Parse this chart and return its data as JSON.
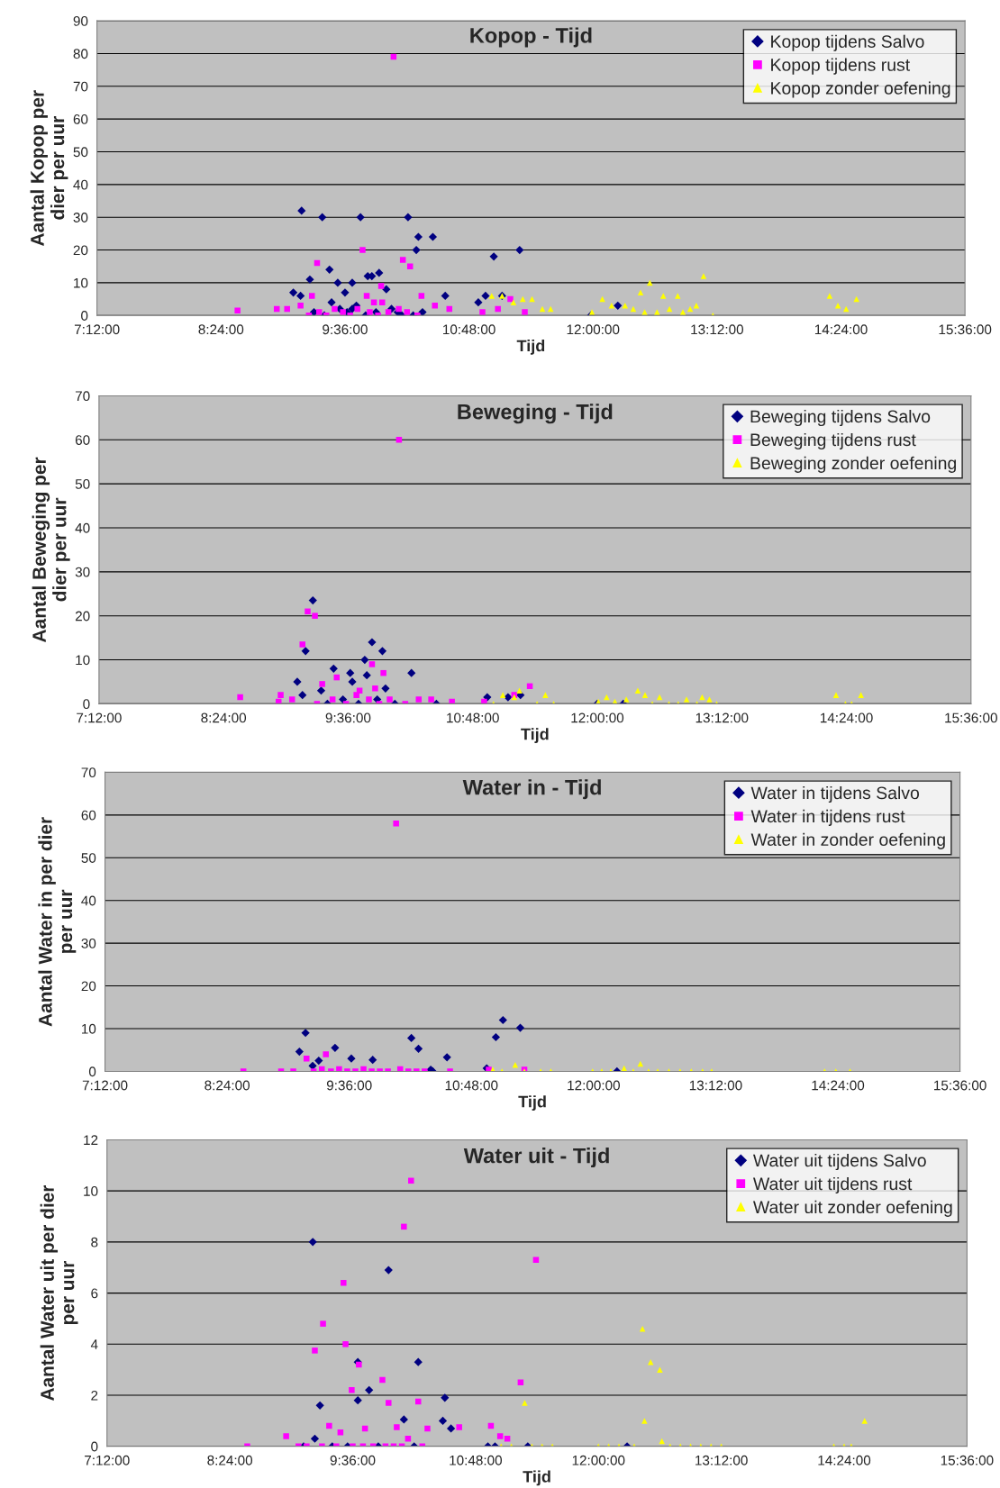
{
  "chart_data": [
    {
      "type": "scatter",
      "title": "Kopop - Tijd",
      "xlabel": "Tijd",
      "ylabel": "Aantal Kopop per\ndier per uur",
      "xlim": [
        7.2,
        15.6
      ],
      "xticks": [
        {
          "value": 7.2,
          "label": "7:12:00"
        },
        {
          "value": 8.4,
          "label": "8:24:00"
        },
        {
          "value": 9.6,
          "label": "9:36:00"
        },
        {
          "value": 10.8,
          "label": "10:48:00"
        },
        {
          "value": 12,
          "label": "12:00:00"
        },
        {
          "value": 13.2,
          "label": "13:12:00"
        },
        {
          "value": 14.4,
          "label": "14:24:00"
        },
        {
          "value": 15.6,
          "label": "15:36:00"
        }
      ],
      "ylim": [
        0,
        90
      ],
      "yticks": [
        0,
        10,
        20,
        30,
        40,
        50,
        60,
        70,
        80,
        90
      ],
      "grid": "y",
      "legend": "top right",
      "series": [
        {
          "name": "Kopop tijdens Salvo",
          "color": "#000080",
          "marker": "diamond",
          "x": [
            9.18,
            9.38,
            9.75,
            10.21,
            10.31,
            10.45,
            10.29,
            11.04,
            11.29,
            9.45,
            9.26,
            9.53,
            9.67,
            9.93,
            9.86,
            9.82,
            10.0,
            9.34,
            9.1,
            9.17,
            9.6,
            9.67,
            9.47,
            9.71,
            10.11,
            10.26,
            10.57,
            10.89,
            10.96,
            11.12,
            11.98,
            12.24,
            9.3,
            9.4,
            9.55,
            9.62,
            9.8,
            9.9,
            10.05,
            10.15,
            10.35
          ],
          "values": [
            32,
            30,
            30,
            30,
            24,
            24,
            20,
            18,
            20,
            14,
            11,
            10,
            10,
            13,
            12,
            12,
            8,
            null,
            7,
            6,
            7,
            2,
            4,
            3,
            1,
            0,
            6,
            4,
            6,
            6,
            0,
            3,
            1,
            0,
            2,
            1,
            0,
            1,
            2,
            0,
            1
          ]
        },
        {
          "name": "Kopop tijdens rust",
          "color": "#ff00ff",
          "marker": "square",
          "x": [
            10.07,
            9.77,
            9.33,
            10.16,
            10.23,
            8.56,
            8.94,
            9.04,
            9.17,
            9.28,
            9.81,
            9.88,
            9.96,
            9.95,
            10.34,
            10.47,
            10.61,
            10.93,
            11.08,
            11.2,
            11.34,
            9.25,
            9.35,
            9.42,
            9.5,
            9.58,
            9.65,
            9.72,
            9.84,
            9.92,
            10.02,
            10.12,
            10.2,
            10.3
          ],
          "values": [
            79,
            20,
            16,
            17,
            15,
            1.5,
            2,
            2,
            3,
            6,
            6,
            4,
            4,
            9,
            6,
            3,
            2,
            1,
            2,
            5,
            1,
            0,
            1,
            0,
            2,
            1,
            0,
            2,
            1,
            0,
            1,
            2,
            1,
            0
          ]
        },
        {
          "name": "Kopop zonder oefening",
          "color": "#ffff00",
          "marker": "triangle",
          "x": [
            11.02,
            11.12,
            11.23,
            11.32,
            11.41,
            11.51,
            11.59,
            11.99,
            12.09,
            12.18,
            12.31,
            12.39,
            12.46,
            12.55,
            12.5,
            12.62,
            12.68,
            12.74,
            12.82,
            12.87,
            12.94,
            13.0,
            13.07,
            13.16,
            14.29,
            14.37,
            14.45,
            14.55
          ],
          "values": [
            6,
            6,
            4,
            5,
            5,
            2,
            2,
            1,
            5,
            3,
            3,
            2,
            7,
            10,
            1,
            1,
            6,
            2,
            6,
            1,
            2,
            3,
            12,
            0,
            6,
            3,
            2,
            5
          ]
        }
      ]
    },
    {
      "type": "scatter",
      "title": "Beweging - Tijd",
      "xlabel": "Tijd",
      "ylabel": "Aantal Beweging per\ndier per uur",
      "xlim": [
        7.2,
        15.6
      ],
      "xticks": [
        {
          "value": 7.2,
          "label": "7:12:00"
        },
        {
          "value": 8.4,
          "label": "8:24:00"
        },
        {
          "value": 9.6,
          "label": "9:36:00"
        },
        {
          "value": 10.8,
          "label": "10:48:00"
        },
        {
          "value": 12,
          "label": "12:00:00"
        },
        {
          "value": 13.2,
          "label": "13:12:00"
        },
        {
          "value": 14.4,
          "label": "14:24:00"
        },
        {
          "value": 15.6,
          "label": "15:36:00"
        }
      ],
      "ylim": [
        0,
        70
      ],
      "yticks": [
        0,
        10,
        20,
        30,
        40,
        50,
        60,
        70
      ],
      "grid": "y",
      "legend": "top right",
      "series": [
        {
          "name": "Beweging tijdens Salvo",
          "color": "#000080",
          "marker": "diamond",
          "x": [
            9.26,
            9.19,
            9.11,
            9.16,
            9.46,
            9.76,
            9.83,
            9.93,
            9.62,
            9.64,
            9.78,
            9.96,
            10.21,
            9.34,
            10.94,
            11.14,
            11.26,
            12.0,
            12.25,
            9.4,
            9.55,
            9.7,
            9.88,
            10.05,
            10.3,
            10.45
          ],
          "values": [
            23.5,
            12,
            5,
            2,
            8,
            10,
            14,
            12,
            7,
            5,
            6.5,
            3.5,
            7,
            3,
            1.5,
            1.5,
            2,
            0,
            0,
            0,
            1,
            0,
            1,
            0,
            null,
            0
          ]
        },
        {
          "name": "Beweging tijdens rust",
          "color": "#ff00ff",
          "marker": "square",
          "x": [
            10.09,
            9.21,
            9.28,
            9.16,
            8.56,
            8.93,
            8.95,
            9.06,
            9.35,
            9.49,
            9.83,
            9.94,
            9.86,
            9.71,
            10.4,
            10.6,
            10.91,
            11.2,
            11.35,
            9.3,
            9.45,
            9.58,
            9.68,
            9.8,
            9.9,
            10.0,
            10.15,
            10.28
          ],
          "values": [
            60,
            21,
            20,
            13.5,
            1.5,
            0.5,
            2,
            1,
            4.5,
            6,
            9,
            7,
            3.5,
            3,
            1,
            0.5,
            0.5,
            2,
            4,
            0,
            1,
            0,
            2,
            1,
            0,
            1,
            0,
            1
          ]
        },
        {
          "name": "Beweging zonder oefening",
          "color": "#ffff00",
          "marker": "triangle",
          "x": [
            11.0,
            11.09,
            11.2,
            11.25,
            11.42,
            11.5,
            11.58,
            12.01,
            12.09,
            12.17,
            12.28,
            12.39,
            12.46,
            12.53,
            12.6,
            12.69,
            12.78,
            12.86,
            12.96,
            13.01,
            13.08,
            13.15,
            14.3,
            14.39,
            14.45,
            14.54
          ],
          "values": [
            0,
            2,
            1.5,
            3,
            0,
            2,
            0,
            0.5,
            1.5,
            0.5,
            1,
            3,
            2,
            0,
            1.5,
            0,
            0,
            1,
            0,
            1.5,
            1,
            0,
            2,
            0,
            0,
            2
          ]
        }
      ]
    },
    {
      "type": "scatter",
      "title": "Water in - Tijd",
      "xlabel": "Tijd",
      "ylabel": "Aantal Water in per dier\nper uur",
      "xlim": [
        7.2,
        15.6
      ],
      "xticks": [
        {
          "value": 7.2,
          "label": "7:12:00"
        },
        {
          "value": 8.4,
          "label": "8:24:00"
        },
        {
          "value": 9.6,
          "label": "9:36:00"
        },
        {
          "value": 10.8,
          "label": "10:48:00"
        },
        {
          "value": 12,
          "label": "12:00:00"
        },
        {
          "value": 13.2,
          "label": "13:12:00"
        },
        {
          "value": 14.4,
          "label": "14:24:00"
        },
        {
          "value": 15.6,
          "label": "15:36:00"
        }
      ],
      "ylim": [
        0,
        70
      ],
      "yticks": [
        0,
        10,
        20,
        30,
        40,
        50,
        60,
        70
      ],
      "grid": "y",
      "legend": "top right",
      "series": [
        {
          "name": "Water in tijdens Salvo",
          "color": "#000080",
          "marker": "diamond",
          "x": [
            9.17,
            9.11,
            9.46,
            9.3,
            9.24,
            9.62,
            9.83,
            10.21,
            10.28,
            10.56,
            10.42,
            11.04,
            11.11,
            11.28,
            10.95,
            12.23,
            10.4
          ],
          "values": [
            9,
            4.6,
            5.5,
            2.5,
            1.3,
            3,
            2.7,
            7.8,
            5.3,
            3.3,
            0,
            8,
            12,
            10.2,
            0.7,
            0,
            0.4
          ]
        },
        {
          "name": "Water in tijdens rust",
          "color": "#ff00ff",
          "marker": "square",
          "x": [
            10.06,
            8.56,
            8.93,
            9.05,
            9.18,
            9.37,
            10.59,
            10.97,
            11.32,
            9.25,
            9.33,
            9.42,
            9.5,
            9.58,
            9.66,
            9.74,
            9.82,
            9.9,
            9.98,
            10.1,
            10.18,
            10.26,
            10.34
          ],
          "values": [
            58,
            0,
            0,
            0,
            3,
            4,
            0,
            0.4,
            0.4,
            0,
            0.5,
            0,
            0.5,
            0,
            0,
            0.5,
            0,
            0,
            0,
            0.5,
            0,
            0,
            0
          ]
        },
        {
          "name": "Water in zonder oefening",
          "color": "#ffff00",
          "marker": "triangle",
          "x": [
            11.01,
            11.1,
            11.23,
            11.32,
            11.48,
            11.58,
            11.99,
            12.08,
            12.17,
            12.3,
            12.39,
            12.46,
            12.54,
            12.63,
            12.74,
            12.85,
            12.96,
            13.07,
            13.16,
            14.27,
            14.38,
            14.52
          ],
          "values": [
            0.4,
            0,
            1.5,
            0,
            0,
            0,
            0,
            0,
            0,
            0.7,
            0,
            1.8,
            0,
            0,
            0,
            0,
            0,
            0,
            0,
            0,
            0,
            0
          ]
        }
      ]
    },
    {
      "type": "scatter",
      "title": "Water uit - Tijd",
      "xlabel": "Tijd",
      "ylabel": "Aantal Water uit per dier\nper uur",
      "xlim": [
        7.2,
        15.6
      ],
      "xticks": [
        {
          "value": 7.2,
          "label": "7:12:00"
        },
        {
          "value": 8.4,
          "label": "8:24:00"
        },
        {
          "value": 9.6,
          "label": "9:36:00"
        },
        {
          "value": 10.8,
          "label": "10:48:00"
        },
        {
          "value": 12,
          "label": "12:00:00"
        },
        {
          "value": 13.2,
          "label": "13:12:00"
        },
        {
          "value": 14.4,
          "label": "14:24:00"
        },
        {
          "value": 15.6,
          "label": "15:36:00"
        }
      ],
      "ylim": [
        0,
        12
      ],
      "yticks": [
        0,
        2,
        4,
        6,
        8,
        10,
        12
      ],
      "grid": "y",
      "legend": "top right",
      "series": [
        {
          "name": "Water uit tijdens Salvo",
          "color": "#000080",
          "marker": "diamond",
          "x": [
            9.21,
            9.95,
            10.24,
            9.65,
            9.76,
            9.65,
            9.28,
            10.1,
            10.5,
            10.48,
            10.56,
            9.23,
            10.92,
            10.99,
            11.31,
            12.28,
            9.12,
            9.4,
            9.55,
            9.85,
            10.2
          ],
          "values": [
            8,
            6.9,
            3.3,
            3.3,
            2.2,
            1.8,
            1.6,
            1.05,
            1.9,
            1.0,
            0.7,
            0.3,
            0,
            0,
            0,
            0,
            0,
            0,
            0,
            0,
            0
          ]
        },
        {
          "name": "Water uit tijdens rust",
          "color": "#ff00ff",
          "marker": "square",
          "x": [
            10.17,
            10.1,
            11.39,
            9.51,
            9.31,
            9.23,
            9.53,
            9.66,
            9.89,
            11.24,
            9.59,
            9.95,
            10.24,
            9.37,
            9.48,
            9.72,
            10.03,
            10.33,
            10.64,
            10.95,
            11.04,
            11.11,
            8.95,
            8.57,
            9.07,
            10.14,
            9.15,
            9.3,
            9.44,
            9.6,
            9.7,
            9.8,
            9.92,
            10.0,
            10.08,
            10.28
          ],
          "values": [
            10.4,
            8.6,
            7.3,
            6.4,
            4.8,
            3.75,
            4,
            3.2,
            2.6,
            2.5,
            2.2,
            1.7,
            1.75,
            0.8,
            0.55,
            0.7,
            0.75,
            0.7,
            0.75,
            0.8,
            0.4,
            0.3,
            0.4,
            0,
            0,
            0.3,
            0,
            0,
            0,
            0,
            0,
            0,
            0,
            0,
            0,
            0
          ]
        },
        {
          "name": "Water uit zonder oefening",
          "color": "#ffff00",
          "marker": "triangle",
          "x": [
            12.43,
            12.51,
            12.6,
            12.45,
            11.28,
            14.6,
            12.62,
            11.05,
            11.15,
            11.35,
            11.45,
            11.55,
            12.0,
            12.1,
            12.2,
            12.35,
            12.7,
            12.8,
            12.9,
            13.0,
            13.1,
            13.2,
            14.3,
            14.4,
            14.47
          ],
          "values": [
            4.6,
            3.3,
            3.0,
            1.0,
            1.7,
            1.0,
            0.2,
            0,
            0,
            0,
            0,
            0,
            0,
            0,
            0,
            0,
            0,
            0,
            0,
            0,
            0,
            0,
            0,
            0,
            0
          ]
        }
      ]
    }
  ]
}
